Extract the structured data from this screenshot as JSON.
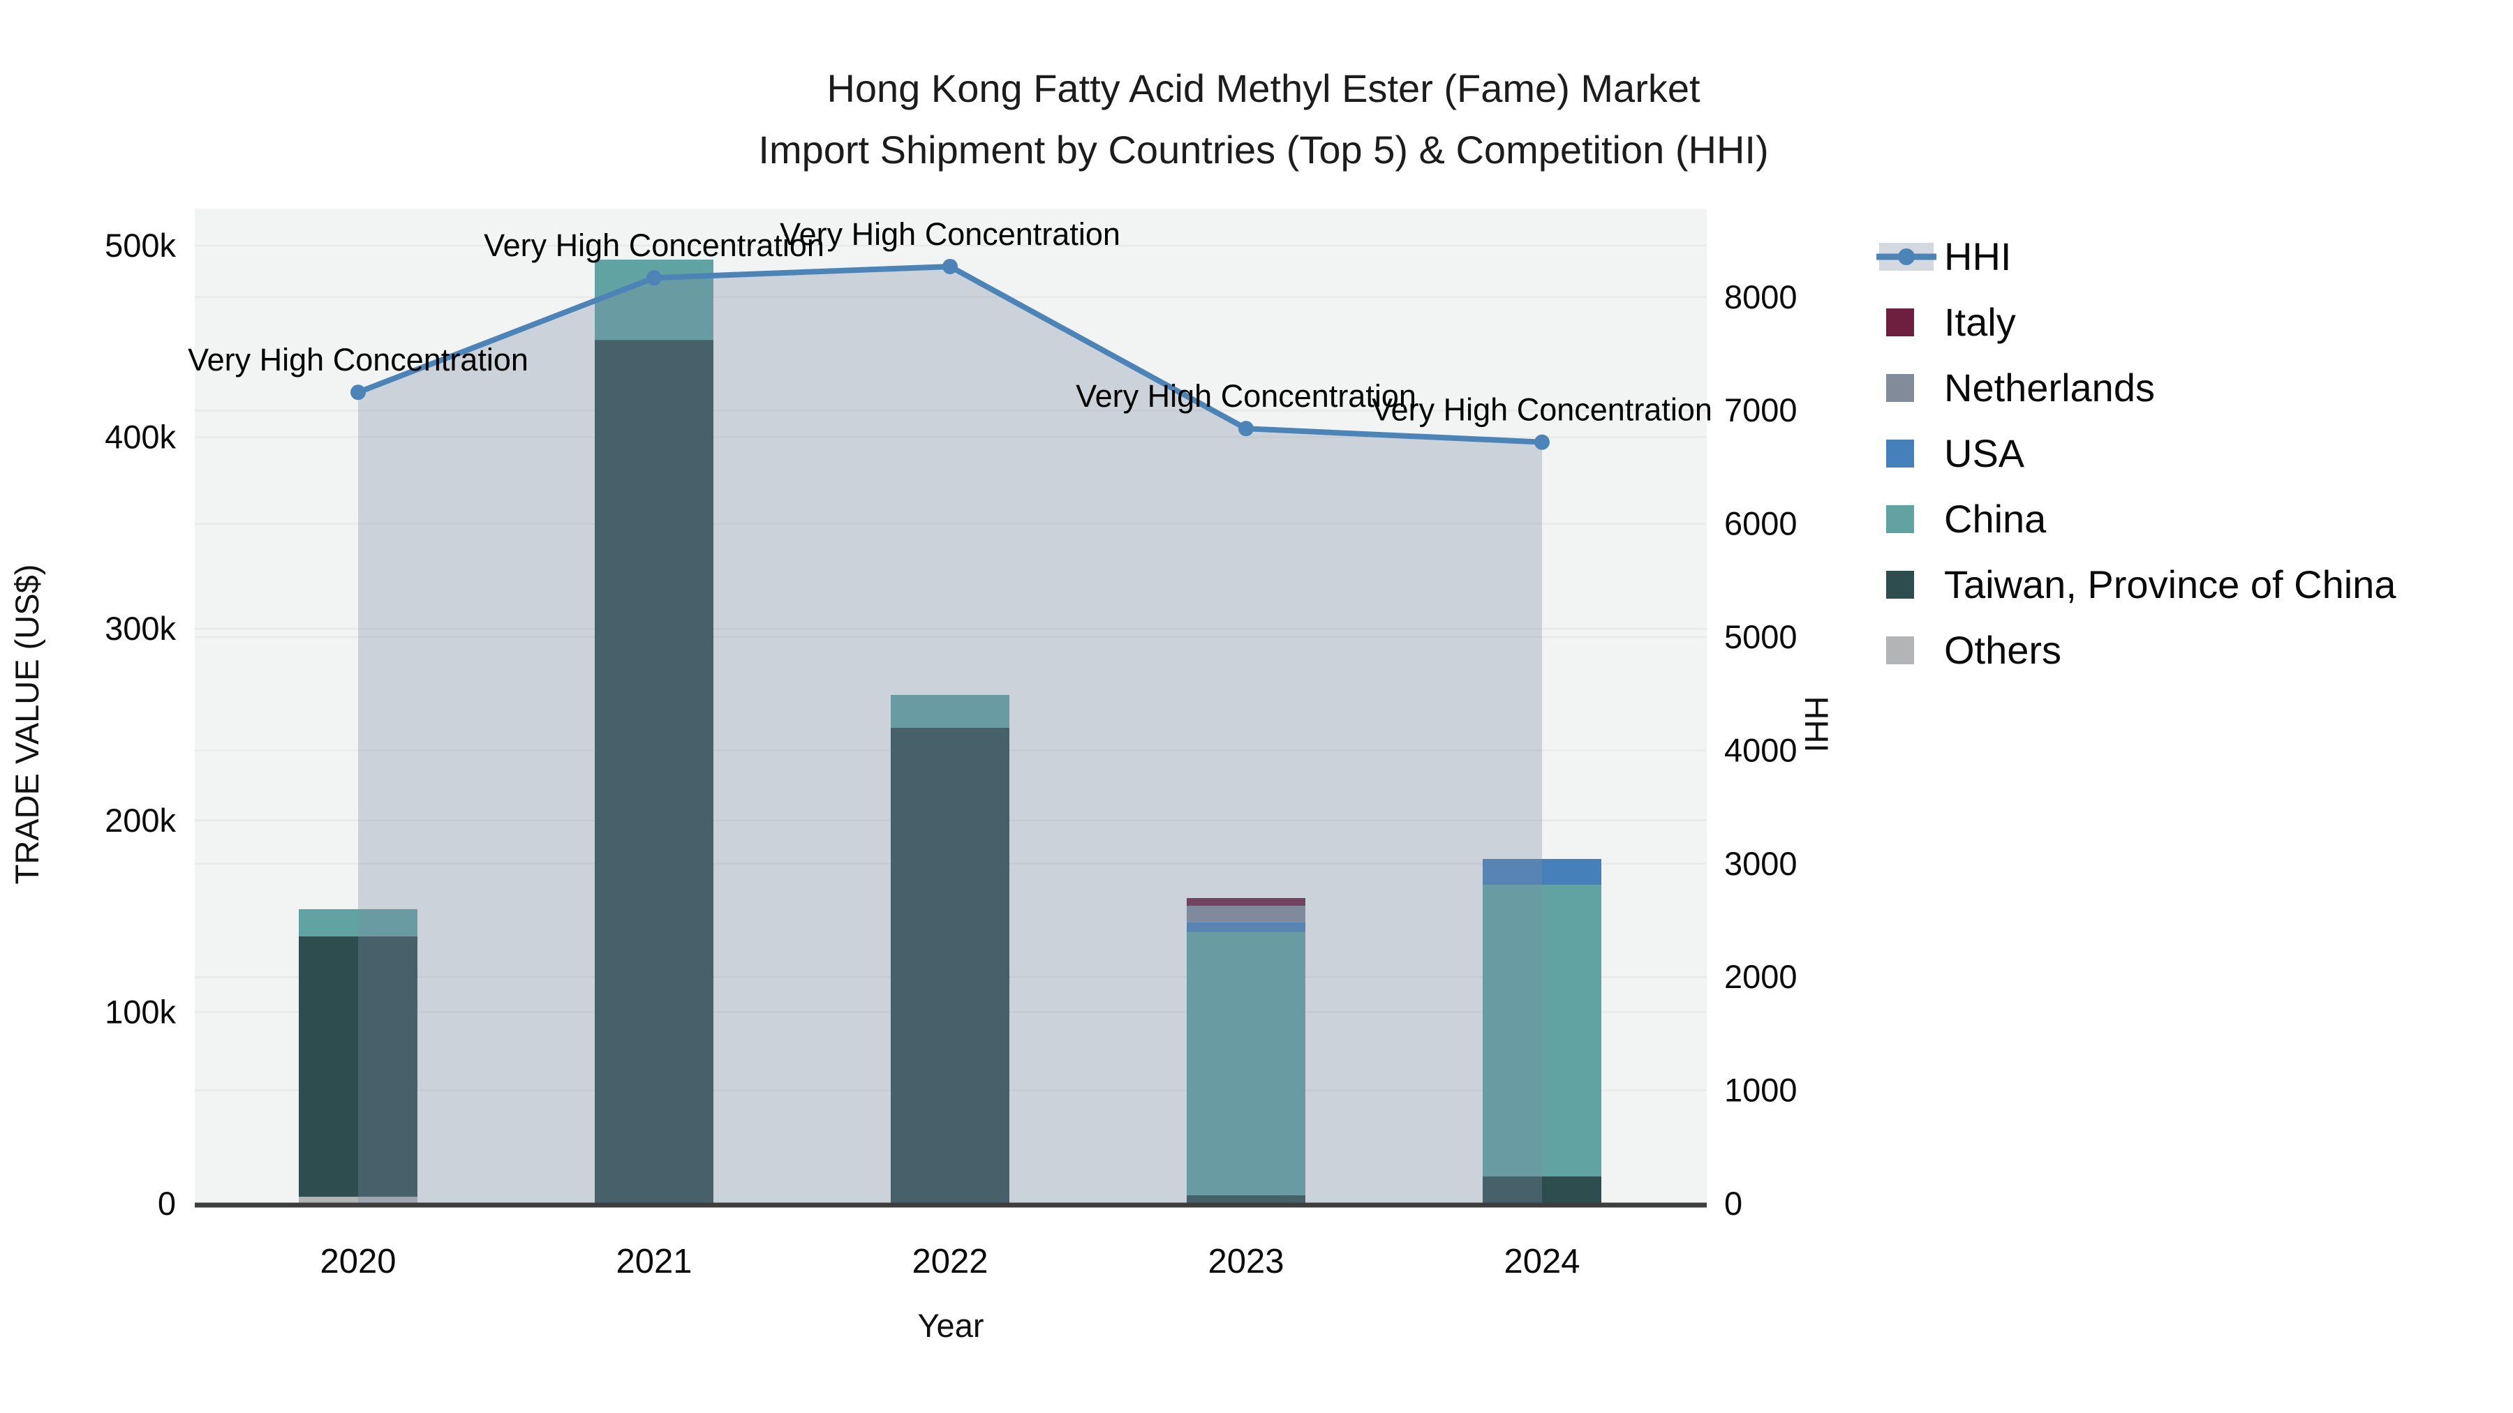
{
  "title": {
    "line1": "Hong Kong Fatty Acid Methyl Ester (Fame) Market",
    "line2": "Import Shipment by Countries (Top 5) & Competition (HHI)"
  },
  "axes": {
    "y_left": {
      "label": "TRADE VALUE (US$)",
      "ticks": [
        "0",
        "100k",
        "200k",
        "300k",
        "400k",
        "500k"
      ]
    },
    "y_right": {
      "label": "HHI",
      "ticks": [
        "0",
        "1000",
        "2000",
        "3000",
        "4000",
        "5000",
        "6000",
        "7000",
        "8000"
      ]
    },
    "x": {
      "label": "Year",
      "ticks": [
        "2020",
        "2021",
        "2022",
        "2023",
        "2024"
      ]
    }
  },
  "legend": {
    "items": [
      {
        "label": "HHI",
        "type": "line",
        "color": "#4d84b8"
      },
      {
        "label": "Italy",
        "type": "swatch",
        "color": "#6e1f3f"
      },
      {
        "label": "Netherlands",
        "type": "swatch",
        "color": "#818b99"
      },
      {
        "label": "USA",
        "type": "swatch",
        "color": "#4680ba"
      },
      {
        "label": "China",
        "type": "swatch",
        "color": "#61a3a3"
      },
      {
        "label": "Taiwan, Province of China",
        "type": "swatch",
        "color": "#2e4d4e"
      },
      {
        "label": "Others",
        "type": "swatch",
        "color": "#b3b4b6"
      }
    ]
  },
  "annotation_text": "Very High Concentration",
  "chart_data": {
    "type": "combo: stacked bar (left axis) + line with area fill (right axis)",
    "title": "Hong Kong Fatty Acid Methyl Ester (Fame) Market — Import Shipment by Countries (Top 5) & Competition (HHI)",
    "categories": [
      "2020",
      "2021",
      "2022",
      "2023",
      "2024"
    ],
    "bar_unit": "US$ thousands (left axis, trade value)",
    "series": [
      {
        "name": "Others",
        "color": "#b3b4b6",
        "values": [
          3.6,
          0,
          0,
          0,
          0
        ]
      },
      {
        "name": "Taiwan, Province of China",
        "color": "#2e4d4e",
        "values": [
          135.9,
          450.8,
          248.4,
          4.4,
          14.2
        ]
      },
      {
        "name": "China",
        "color": "#61a3a3",
        "values": [
          14.2,
          41.9,
          17.1,
          137.3,
          152.2
        ]
      },
      {
        "name": "USA",
        "color": "#4680ba",
        "values": [
          0,
          0,
          0,
          5.1,
          13.5
        ]
      },
      {
        "name": "Netherlands",
        "color": "#818b99",
        "values": [
          0,
          0,
          0,
          8.7,
          0
        ]
      },
      {
        "name": "Italy",
        "color": "#6e1f3f",
        "values": [
          0,
          0,
          0,
          4.0,
          0
        ]
      }
    ],
    "bar_totals_k": [
      153.7,
      492.7,
      265.5,
      159.5,
      179.9
    ],
    "line": {
      "name": "HHI",
      "color": "#4d84b8",
      "area_fill": "rgba(124,140,166,0.32)",
      "values": [
        7160,
        8170,
        8270,
        6840,
        6720
      ],
      "point_annotations": [
        "Very High Concentration",
        "Very High Concentration",
        "Very High Concentration",
        "Very High Concentration",
        "Very High Concentration"
      ]
    },
    "xlabel": "Year",
    "ylabel_left": "TRADE VALUE (US$)",
    "ylabel_right": "HHI",
    "ylim_left_k": [
      0,
      519
    ],
    "ylim_right": [
      0,
      8780
    ],
    "grid": true,
    "legend_position": "right",
    "plot_bg": "#f2f3f3",
    "grid_color": "#e6e8ea",
    "axis_line_color": "#3d3d3d"
  }
}
